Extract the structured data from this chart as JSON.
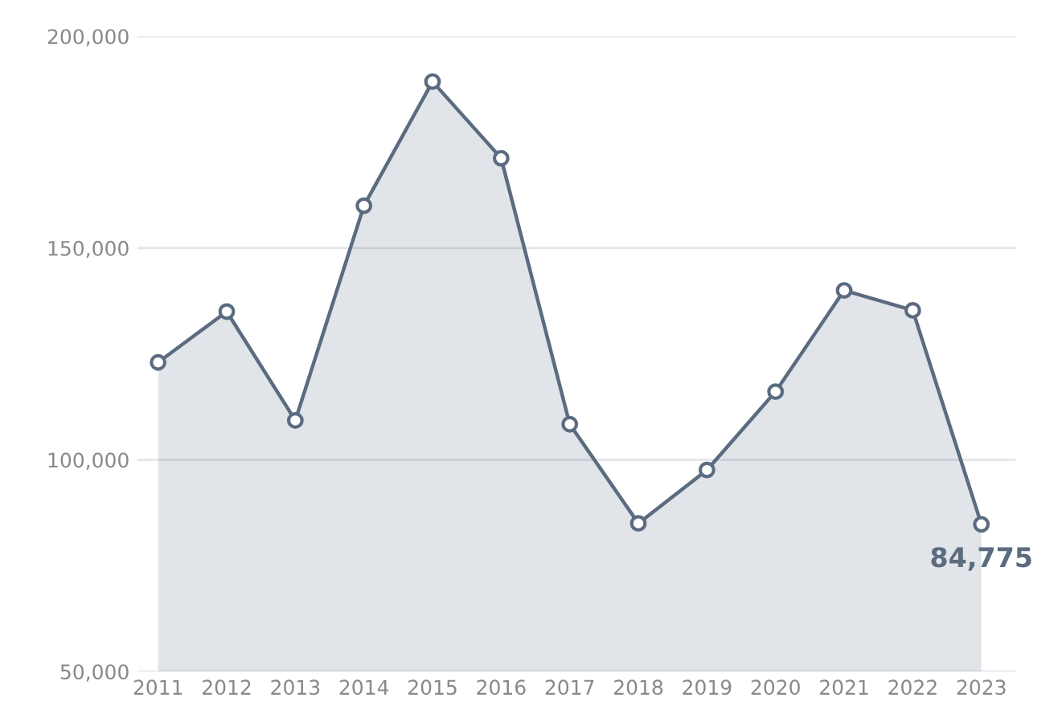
{
  "chart_data": {
    "type": "area",
    "categories": [
      "2011",
      "2012",
      "2013",
      "2014",
      "2015",
      "2016",
      "2017",
      "2018",
      "2019",
      "2020",
      "2021",
      "2022",
      "2023"
    ],
    "series": [
      {
        "color": "#5b6b80",
        "values": [
          123000,
          135000,
          109300,
          160000,
          189300,
          171200,
          108400,
          85000,
          97600,
          116100,
          140000,
          135300,
          84775
        ]
      }
    ],
    "value_labels": [
      null,
      null,
      null,
      null,
      null,
      null,
      null,
      null,
      null,
      null,
      null,
      null,
      "84,775"
    ],
    "ylim": [
      50000,
      200000
    ],
    "yticks": [
      {
        "value": 50000,
        "label": "50,000"
      },
      {
        "value": 100000,
        "label": "100,000"
      },
      {
        "value": 150000,
        "label": "150,000"
      },
      {
        "value": 200000,
        "label": "200,000"
      }
    ],
    "grid": "y",
    "marker": "circle",
    "line_style": "solid",
    "legend": false
  }
}
